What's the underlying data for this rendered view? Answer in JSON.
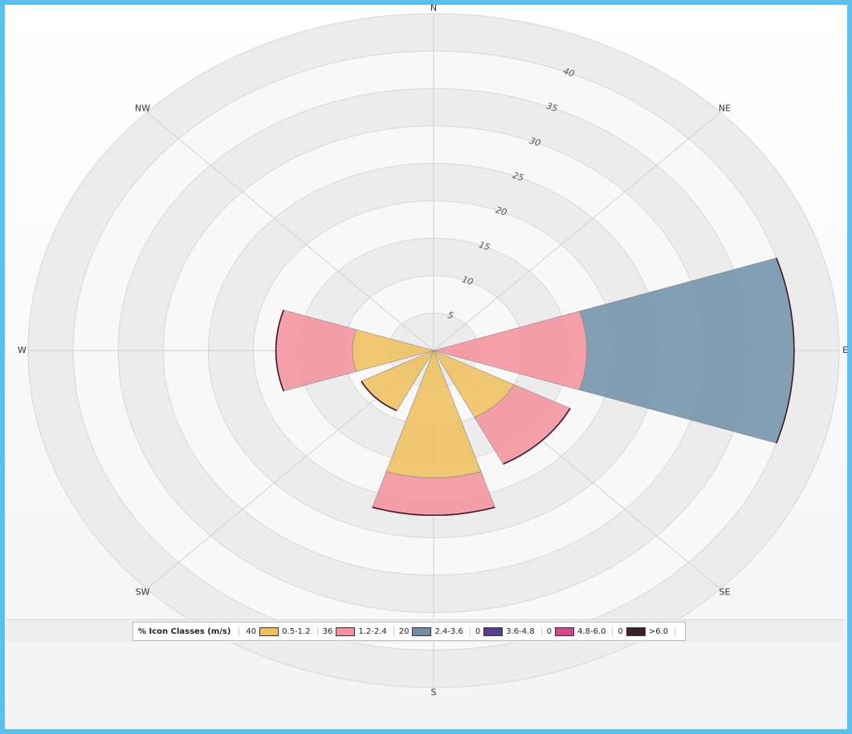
{
  "chart_data": {
    "type": "windrose",
    "legend_title": "% Icon  Classes (m/s)",
    "categories": [
      "N",
      "NE",
      "E",
      "SE",
      "S",
      "SW",
      "W",
      "NW"
    ],
    "rlim": [
      0,
      45
    ],
    "rticks": [
      5,
      10,
      15,
      20,
      25,
      30,
      35,
      40
    ],
    "series": [
      {
        "name": "0.5-1.2",
        "percent": 40,
        "color": "#f0c05a",
        "values": [
          0,
          0,
          0,
          10,
          17,
          9,
          9,
          0
        ]
      },
      {
        "name": "1.2-2.4",
        "percent": 36,
        "color": "#f4909b",
        "values": [
          0,
          0,
          17,
          7,
          5,
          0,
          8.5,
          0
        ]
      },
      {
        "name": "2.4-3.6",
        "percent": 20,
        "color": "#6f8fa8",
        "values": [
          0,
          0,
          23,
          0,
          0,
          0,
          0,
          0
        ]
      },
      {
        "name": "3.6-4.8",
        "percent": 0,
        "color": "#5b3d8f",
        "values": [
          0,
          0,
          0,
          0,
          0,
          0,
          0,
          0
        ]
      },
      {
        "name": "4.8-6.0",
        "percent": 0,
        "color": "#d9458a",
        "values": [
          0,
          0,
          0,
          0,
          0,
          0,
          0,
          0
        ]
      },
      {
        "name": ">6.0",
        "percent": 0,
        "color": "#3a1f28",
        "values": [
          0,
          0,
          0,
          0,
          0,
          0,
          0,
          0
        ]
      }
    ]
  }
}
